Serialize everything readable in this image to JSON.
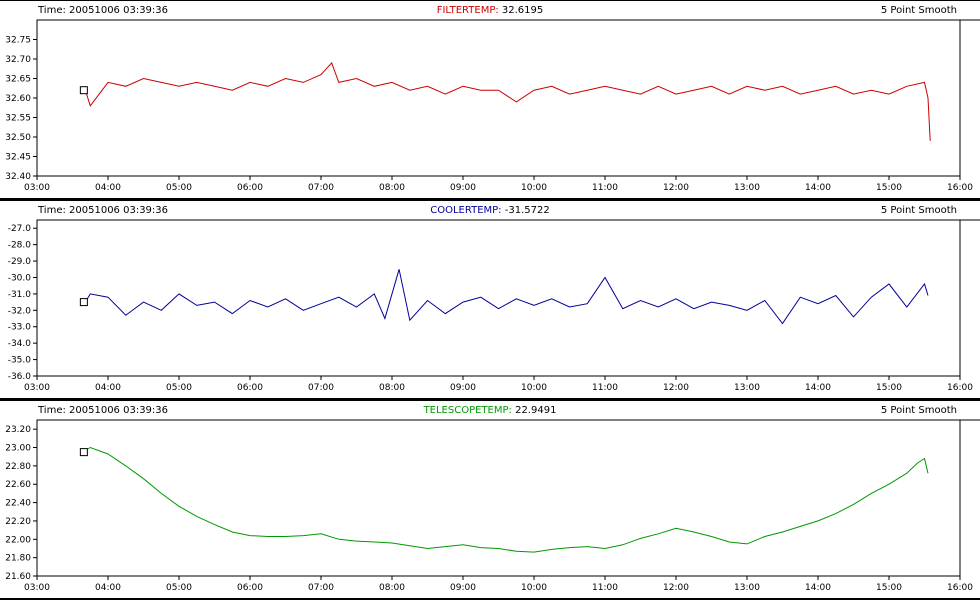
{
  "panels": [
    {
      "time_label": "Time: 20051006 03:39:36",
      "title_name": "FILTERTEMP:",
      "title_value": "32.6195",
      "mode_label": "5 Point Smooth",
      "color": "#cc0000"
    },
    {
      "time_label": "Time: 20051006 03:39:36",
      "title_name": "COOLERTEMP:",
      "title_value": "-31.5722",
      "mode_label": "5 Point Smooth",
      "color": "#000099"
    },
    {
      "time_label": "Time: 20051006 03:39:36",
      "title_name": "TELESCOPETEMP:",
      "title_value": "22.9491",
      "mode_label": "5 Point Smooth",
      "color": "#009900"
    }
  ],
  "chart_data": [
    {
      "type": "line",
      "title": "FILTERTEMP: 32.6195",
      "series": [
        {
          "name": "FILTERTEMP",
          "color": "#cc0000",
          "x": [
            3.68,
            3.75,
            4.0,
            4.25,
            4.5,
            4.75,
            5.0,
            5.25,
            5.5,
            5.75,
            6.0,
            6.25,
            6.5,
            6.75,
            7.0,
            7.15,
            7.25,
            7.5,
            7.75,
            8.0,
            8.25,
            8.5,
            8.75,
            9.0,
            9.25,
            9.5,
            9.75,
            10.0,
            10.25,
            10.5,
            10.75,
            11.0,
            11.25,
            11.5,
            11.75,
            12.0,
            12.25,
            12.5,
            12.75,
            13.0,
            13.25,
            13.5,
            13.75,
            14.0,
            14.25,
            14.5,
            14.75,
            15.0,
            15.25,
            15.5,
            15.55,
            15.58
          ],
          "y": [
            32.62,
            32.58,
            32.64,
            32.63,
            32.65,
            32.64,
            32.63,
            32.64,
            32.63,
            32.62,
            32.64,
            32.63,
            32.65,
            32.64,
            32.66,
            32.69,
            32.64,
            32.65,
            32.63,
            32.64,
            32.62,
            32.63,
            32.61,
            32.63,
            32.62,
            32.62,
            32.59,
            32.62,
            32.63,
            32.61,
            32.62,
            32.63,
            32.62,
            32.61,
            32.63,
            32.61,
            32.62,
            32.63,
            32.61,
            32.63,
            32.62,
            32.63,
            32.61,
            32.62,
            32.63,
            32.61,
            32.62,
            32.61,
            32.63,
            32.64,
            32.6,
            32.49
          ]
        }
      ],
      "xlim": [
        "03:00",
        "16:00"
      ],
      "ylim": [
        32.4,
        32.8
      ],
      "x_ticks": [
        "03:00",
        "04:00",
        "05:00",
        "06:00",
        "07:00",
        "08:00",
        "09:00",
        "10:00",
        "11:00",
        "12:00",
        "13:00",
        "14:00",
        "15:00",
        "16:00"
      ],
      "y_ticks": [
        "32.75",
        "32.70",
        "32.65",
        "32.60",
        "32.55",
        "32.50",
        "32.45",
        "32.40"
      ],
      "marker": {
        "x": 3.66,
        "y": 32.62
      }
    },
    {
      "type": "line",
      "title": "COOLERTEMP: -31.5722",
      "series": [
        {
          "name": "COOLERTEMP",
          "color": "#000099",
          "x": [
            3.68,
            3.75,
            4.0,
            4.25,
            4.5,
            4.75,
            5.0,
            5.25,
            5.5,
            5.75,
            6.0,
            6.25,
            6.5,
            6.75,
            7.0,
            7.25,
            7.5,
            7.75,
            7.9,
            8.1,
            8.25,
            8.5,
            8.75,
            9.0,
            9.25,
            9.5,
            9.75,
            10.0,
            10.25,
            10.5,
            10.75,
            11.0,
            11.25,
            11.5,
            11.75,
            12.0,
            12.25,
            12.5,
            12.75,
            13.0,
            13.25,
            13.5,
            13.75,
            14.0,
            14.25,
            14.5,
            14.75,
            15.0,
            15.25,
            15.5,
            15.55
          ],
          "y": [
            -31.5,
            -31.0,
            -31.2,
            -32.3,
            -31.5,
            -32.0,
            -31.0,
            -31.7,
            -31.5,
            -32.2,
            -31.4,
            -31.8,
            -31.3,
            -32.0,
            -31.6,
            -31.2,
            -31.8,
            -31.0,
            -32.5,
            -29.5,
            -32.6,
            -31.4,
            -32.2,
            -31.5,
            -31.2,
            -31.9,
            -31.3,
            -31.7,
            -31.3,
            -31.8,
            -31.6,
            -30.0,
            -31.9,
            -31.4,
            -31.8,
            -31.3,
            -31.9,
            -31.5,
            -31.7,
            -32.0,
            -31.4,
            -32.8,
            -31.2,
            -31.6,
            -31.1,
            -32.4,
            -31.2,
            -30.4,
            -31.8,
            -30.4,
            -31.1
          ]
        }
      ],
      "xlim": [
        "03:00",
        "16:00"
      ],
      "ylim": [
        -36.0,
        -26.5
      ],
      "x_ticks": [
        "03:00",
        "04:00",
        "05:00",
        "06:00",
        "07:00",
        "08:00",
        "09:00",
        "10:00",
        "11:00",
        "12:00",
        "13:00",
        "14:00",
        "15:00",
        "16:00"
      ],
      "y_ticks": [
        "-27.0",
        "-28.0",
        "-29.0",
        "-30.0",
        "-31.0",
        "-32.0",
        "-33.0",
        "-34.0",
        "-35.0",
        "-36.0"
      ],
      "marker": {
        "x": 3.66,
        "y": -31.5
      }
    },
    {
      "type": "line",
      "title": "TELESCOPETEMP: 22.9491",
      "series": [
        {
          "name": "TELESCOPETEMP",
          "color": "#009900",
          "x": [
            3.68,
            3.75,
            4.0,
            4.25,
            4.5,
            4.75,
            5.0,
            5.25,
            5.5,
            5.75,
            6.0,
            6.25,
            6.5,
            6.75,
            7.0,
            7.25,
            7.5,
            7.75,
            8.0,
            8.25,
            8.5,
            8.75,
            9.0,
            9.25,
            9.5,
            9.75,
            10.0,
            10.25,
            10.5,
            10.75,
            11.0,
            11.25,
            11.5,
            11.75,
            12.0,
            12.25,
            12.5,
            12.75,
            13.0,
            13.25,
            13.5,
            13.75,
            14.0,
            14.25,
            14.5,
            14.75,
            15.0,
            15.25,
            15.4,
            15.5,
            15.55
          ],
          "y": [
            22.97,
            23.0,
            22.93,
            22.8,
            22.66,
            22.5,
            22.36,
            22.25,
            22.16,
            22.08,
            22.04,
            22.03,
            22.03,
            22.04,
            22.06,
            22.0,
            21.98,
            21.97,
            21.96,
            21.93,
            21.9,
            21.92,
            21.94,
            21.91,
            21.9,
            21.87,
            21.86,
            21.89,
            21.91,
            21.92,
            21.9,
            21.94,
            22.01,
            22.06,
            22.12,
            22.08,
            22.03,
            21.97,
            21.95,
            22.03,
            22.08,
            22.14,
            22.2,
            22.28,
            22.38,
            22.5,
            22.6,
            22.72,
            22.83,
            22.88,
            22.72
          ]
        }
      ],
      "xlim": [
        "03:00",
        "16:00"
      ],
      "ylim": [
        21.6,
        23.3
      ],
      "x_ticks": [
        "03:00",
        "04:00",
        "05:00",
        "06:00",
        "07:00",
        "08:00",
        "09:00",
        "10:00",
        "11:00",
        "12:00",
        "13:00",
        "14:00",
        "15:00",
        "16:00"
      ],
      "y_ticks": [
        "23.20",
        "23.00",
        "22.80",
        "22.60",
        "22.40",
        "22.20",
        "22.00",
        "21.80",
        "21.60"
      ],
      "marker": {
        "x": 3.66,
        "y": 22.95
      }
    }
  ]
}
